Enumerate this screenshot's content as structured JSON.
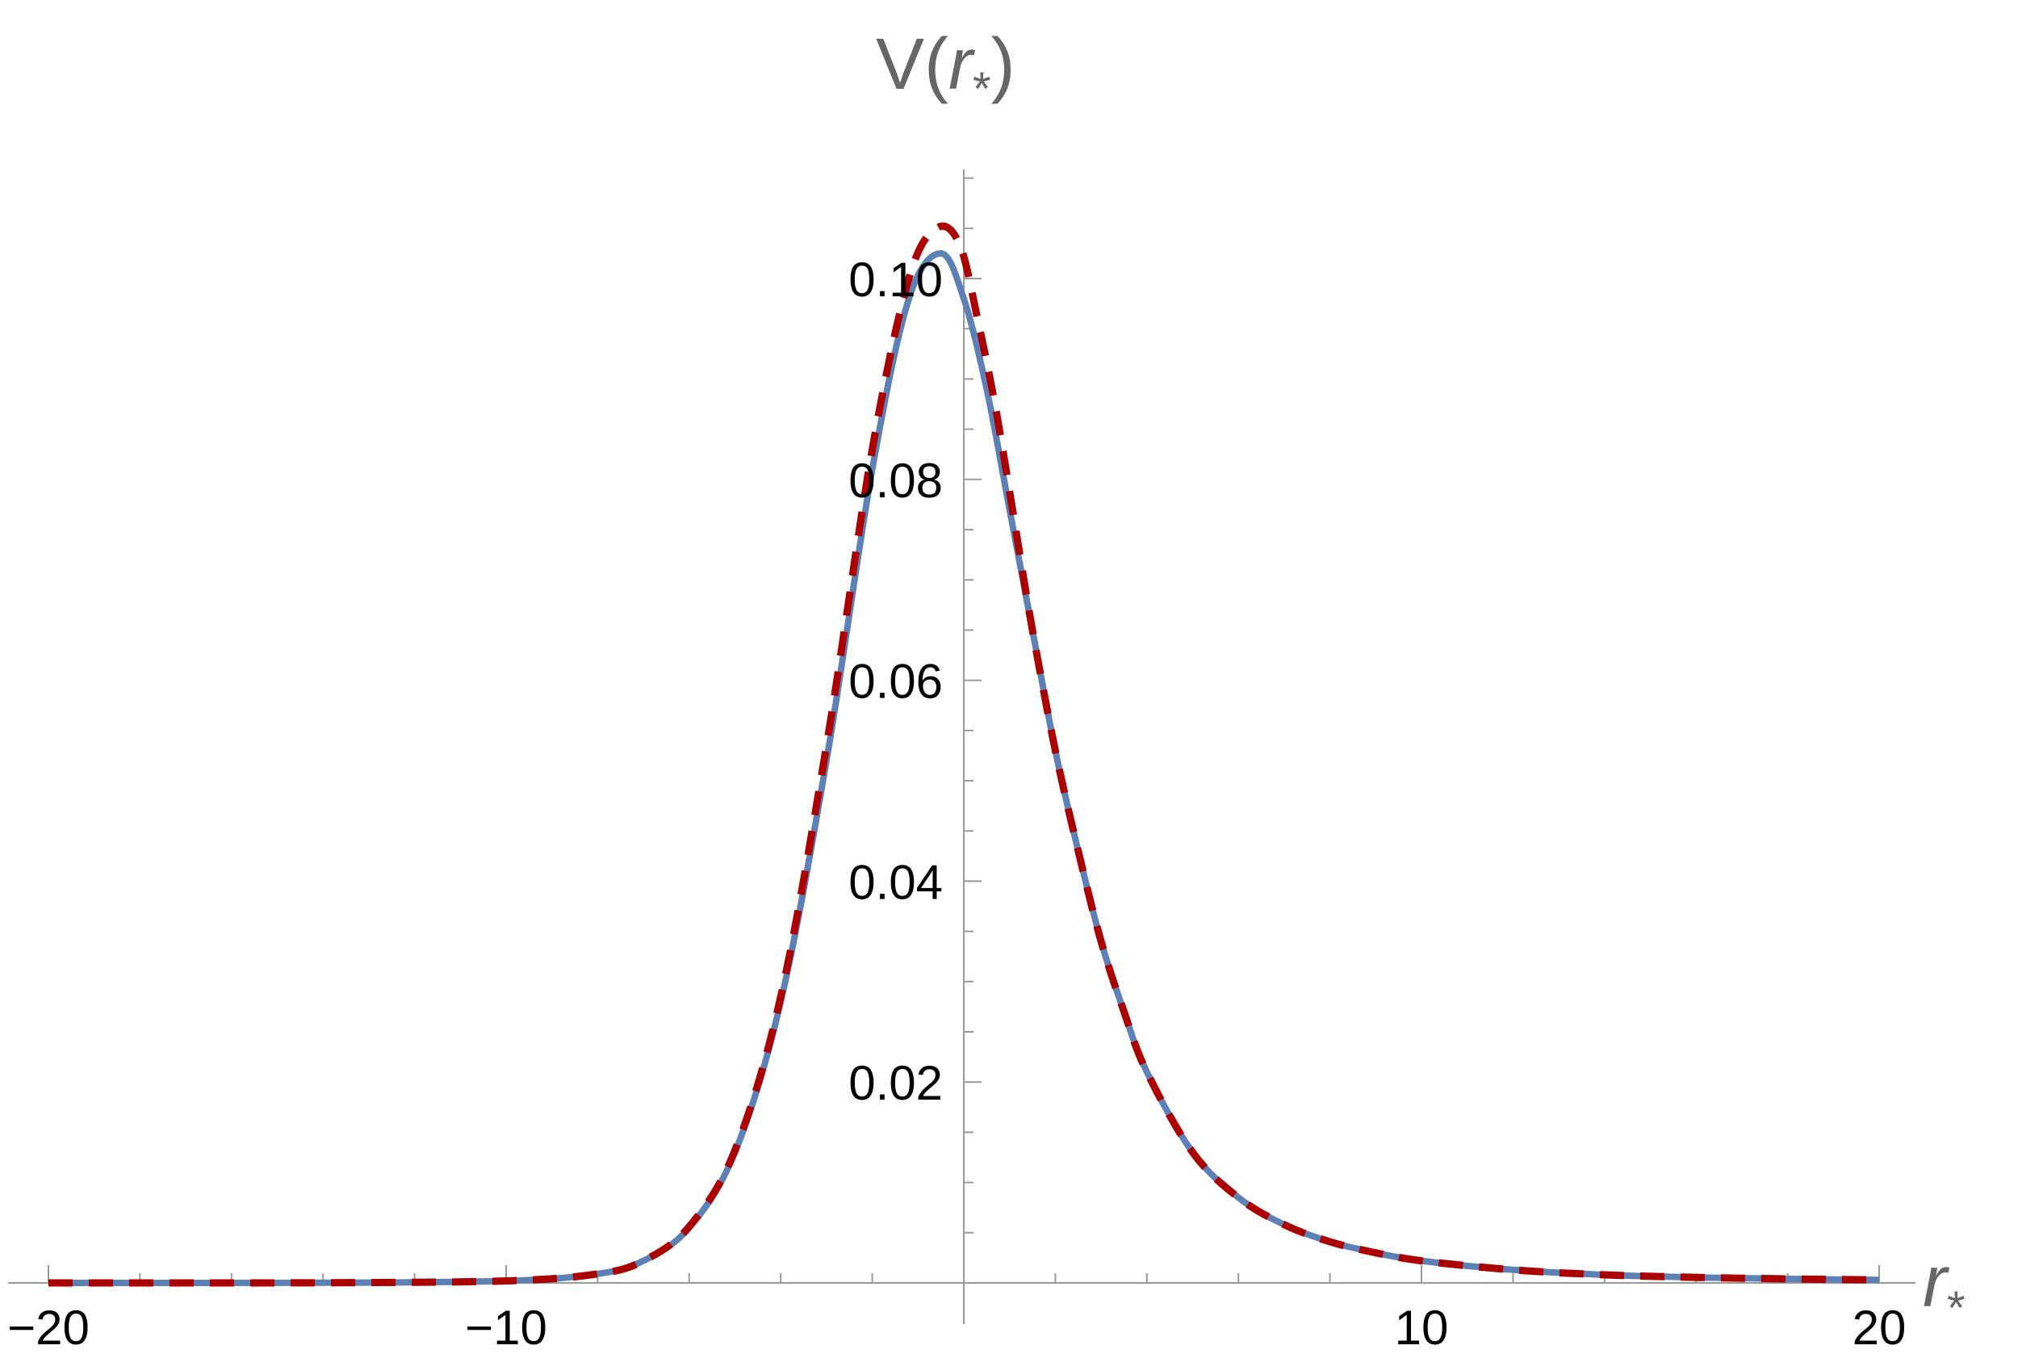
{
  "chart_data": {
    "type": "line",
    "title": "",
    "xlabel": "r*",
    "ylabel": "V(r*)",
    "ylabel_parts": {
      "func": "V(",
      "var": "r",
      "sub": "*",
      "close": ")"
    },
    "xlabel_parts": {
      "var": "r",
      "sub": "*"
    },
    "xlim": [
      -20,
      20
    ],
    "ylim": [
      0,
      0.11
    ],
    "x_ticks": [
      -20,
      -10,
      10,
      20
    ],
    "x_tick_labels": [
      "−20",
      "−10",
      "10",
      "20"
    ],
    "y_ticks": [
      0.02,
      0.04,
      0.06,
      0.08,
      0.1
    ],
    "y_tick_labels": [
      "0.02",
      "0.04",
      "0.06",
      "0.08",
      "0.10"
    ],
    "grid": false,
    "series": [
      {
        "style": "solid",
        "color": "#5e81b5",
        "points": [
          [
            -20,
            0
          ],
          [
            -14,
            2e-05
          ],
          [
            -10,
            0.0002
          ],
          [
            -8,
            0.0009
          ],
          [
            -7,
            0.0022
          ],
          [
            -6,
            0.0055
          ],
          [
            -5,
            0.013
          ],
          [
            -4,
            0.028
          ],
          [
            -3,
            0.052
          ],
          [
            -2,
            0.081
          ],
          [
            -1.2,
            0.098
          ],
          [
            -0.5,
            0.1025
          ],
          [
            0,
            0.098
          ],
          [
            0.5,
            0.089
          ],
          [
            1,
            0.077
          ],
          [
            1.5,
            0.065
          ],
          [
            2,
            0.053
          ],
          [
            2.5,
            0.043
          ],
          [
            3,
            0.034
          ],
          [
            3.5,
            0.027
          ],
          [
            4,
            0.021
          ],
          [
            5,
            0.013
          ],
          [
            6,
            0.0085
          ],
          [
            7,
            0.0058
          ],
          [
            8,
            0.0041
          ],
          [
            9,
            0.003
          ],
          [
            10,
            0.0022
          ],
          [
            12,
            0.0013
          ],
          [
            14,
            0.0008
          ],
          [
            16,
            0.00055
          ],
          [
            18,
            0.0004
          ],
          [
            20,
            0.0003
          ]
        ]
      },
      {
        "style": "dashed",
        "color": "#aa0000",
        "points": [
          [
            -20,
            0
          ],
          [
            -14,
            2e-05
          ],
          [
            -10,
            0.0002
          ],
          [
            -8,
            0.0009
          ],
          [
            -7,
            0.0022
          ],
          [
            -6,
            0.0056
          ],
          [
            -5,
            0.0132
          ],
          [
            -4,
            0.0285
          ],
          [
            -3,
            0.0535
          ],
          [
            -2,
            0.083
          ],
          [
            -1.2,
            0.1
          ],
          [
            -0.6,
            0.105
          ],
          [
            -0.1,
            0.1035
          ],
          [
            0.3,
            0.096
          ],
          [
            0.7,
            0.087
          ],
          [
            1.1,
            0.076
          ],
          [
            1.5,
            0.065
          ],
          [
            2,
            0.053
          ],
          [
            2.5,
            0.043
          ],
          [
            3,
            0.034
          ],
          [
            3.5,
            0.027
          ],
          [
            4,
            0.021
          ],
          [
            5,
            0.013
          ],
          [
            6,
            0.0085
          ],
          [
            7,
            0.0058
          ],
          [
            8,
            0.0041
          ],
          [
            9,
            0.003
          ],
          [
            10,
            0.0022
          ],
          [
            12,
            0.0013
          ],
          [
            14,
            0.0008
          ],
          [
            16,
            0.00055
          ],
          [
            18,
            0.0004
          ],
          [
            20,
            0.0003
          ]
        ]
      }
    ]
  }
}
